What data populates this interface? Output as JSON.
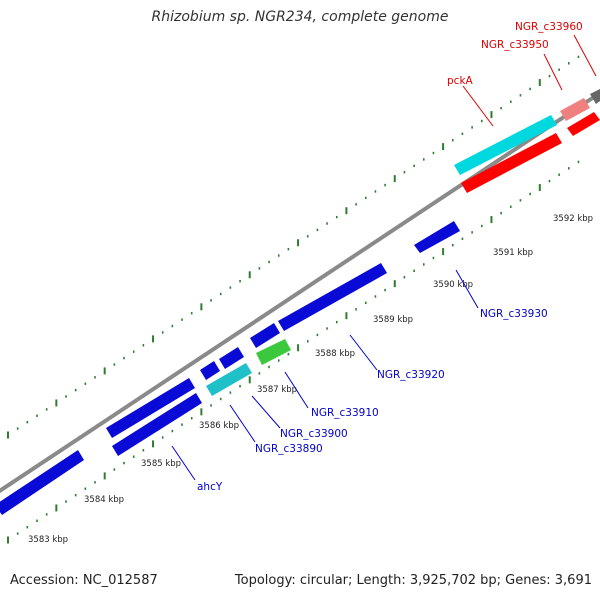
{
  "title": "Rhizobium sp. NGR234, complete genome",
  "footer": {
    "accession": "Accession: NC_012587",
    "summary": "Topology: circular; Length: 3,925,702 bp; Genes: 3,691"
  },
  "colors": {
    "backbone": "#8a8a8a",
    "forward_gene": "#0a0ad6",
    "reverse_gene": "#0a0ad6",
    "highlight_cyan": "#00d8e0",
    "highlight_red": "#ff0000",
    "highlight_pink": "#f08080",
    "highlight_green": "#3cc83c",
    "tick": "#2f7d2f",
    "label_blue": "#0000cc",
    "label_red": "#dd0000"
  },
  "kbp_labels": [
    "3583 kbp",
    "3584 kbp",
    "3585 kbp",
    "3586 kbp",
    "3587 kbp",
    "3588 kbp",
    "3589 kbp",
    "3590 kbp",
    "3591 kbp",
    "3592 kbp"
  ],
  "gene_labels": [
    "ahcY",
    "NGR_c33890",
    "NGR_c33900",
    "NGR_c33910",
    "NGR_c33920",
    "NGR_c33930",
    "pckA",
    "NGR_c33950",
    "NGR_c33960"
  ]
}
